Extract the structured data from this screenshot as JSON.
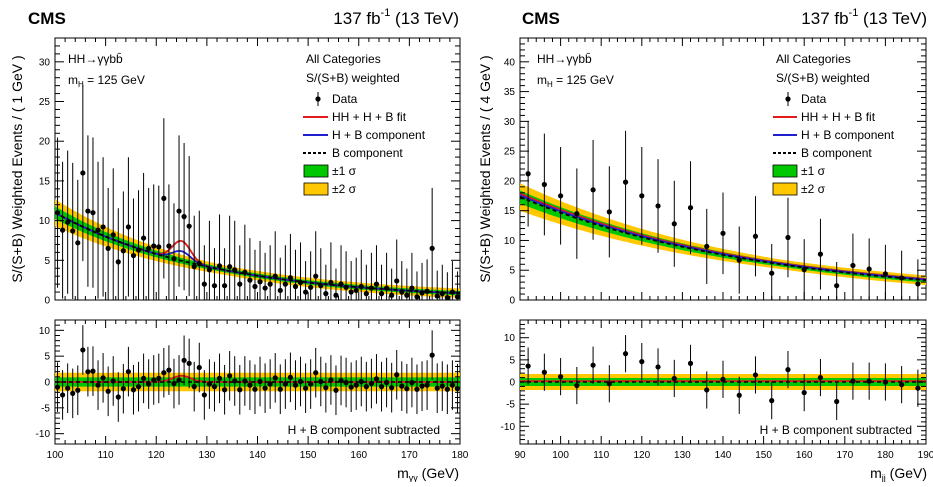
{
  "panels": [
    {
      "experiment": "CMS",
      "lumi_prefix": "137 fb",
      "lumi_exp": "-1",
      "lumi_suffix": " (13 TeV)",
      "process": "HH→γγbb̄",
      "mass_label": "m",
      "mass_sub": "H",
      "mass_value": " = 125 GeV",
      "categories_label": "All Categories",
      "weight_label": "S/(S+B) weighted",
      "ratio_label": "H + B component subtracted",
      "ylabel": "S/(S+B) Weighted Events / ( 1 GeV )",
      "xlabel": "m",
      "xlabel_sub": "γγ",
      "xlabel_unit": " (GeV)"
    },
    {
      "experiment": "CMS",
      "lumi_prefix": "137 fb",
      "lumi_exp": "-1",
      "lumi_suffix": " (13 TeV)",
      "process": "HH→γγbb̄",
      "mass_label": "m",
      "mass_sub": "H",
      "mass_value": " = 125 GeV",
      "categories_label": "All Categories",
      "weight_label": "S/(S+B) weighted",
      "ratio_label": "H + B component subtracted",
      "ylabel": "S/(S+B) Weighted Events / ( 4 GeV )",
      "xlabel": "m",
      "xlabel_sub": "jj",
      "xlabel_unit": " (GeV)"
    }
  ],
  "legend": [
    {
      "key": "data",
      "label": "Data"
    },
    {
      "key": "fit",
      "label": "HH + H + B fit",
      "color": "#e31a1c"
    },
    {
      "key": "hb",
      "label": "H + B component",
      "color": "#1f1fd0"
    },
    {
      "key": "b",
      "label": "B component",
      "color": "#000000"
    },
    {
      "key": "s1",
      "label": "±1 σ",
      "color": "#00c800"
    },
    {
      "key": "s2",
      "label": "±2 σ",
      "color": "#ffc800"
    }
  ],
  "chart_data": [
    {
      "type": "scatter",
      "xlim": [
        100,
        180
      ],
      "ylim": [
        0,
        33
      ],
      "xticks": [
        100,
        110,
        120,
        130,
        140,
        150,
        160,
        170,
        180
      ],
      "yticks": [
        0,
        5,
        10,
        15,
        20,
        25,
        30
      ],
      "points": [
        [
          100.5,
          11
        ],
        [
          101.5,
          8.8
        ],
        [
          102.5,
          9.8
        ],
        [
          103.5,
          8.7
        ],
        [
          104.5,
          7.2
        ],
        [
          105.5,
          16
        ],
        [
          106.5,
          11.2
        ],
        [
          107.5,
          11
        ],
        [
          108.5,
          8.8
        ],
        [
          109.5,
          9.2
        ],
        [
          110.5,
          6.5
        ],
        [
          111.5,
          8.2
        ],
        [
          112.5,
          4.8
        ],
        [
          113.5,
          6.2
        ],
        [
          114.5,
          9.2
        ],
        [
          115.5,
          5.6
        ],
        [
          116.5,
          6.3
        ],
        [
          117.5,
          7.8
        ],
        [
          118.5,
          6.5
        ],
        [
          119.5,
          6.8
        ],
        [
          120.5,
          6.7
        ],
        [
          121.5,
          12.8
        ],
        [
          122.5,
          6.8
        ],
        [
          123.5,
          5.2
        ],
        [
          124.5,
          11.2
        ],
        [
          125.5,
          10.5
        ],
        [
          126.5,
          9.3
        ],
        [
          127.5,
          4.2
        ],
        [
          128.5,
          4.6
        ],
        [
          129.5,
          2
        ],
        [
          130.5,
          3.8
        ],
        [
          131.5,
          1.8
        ],
        [
          132.5,
          4.3
        ],
        [
          133.5,
          1.8
        ],
        [
          134.5,
          4.2
        ],
        [
          135.5,
          3.8
        ],
        [
          136.5,
          2
        ],
        [
          137.5,
          3.5
        ],
        [
          138.5,
          2.5
        ],
        [
          139.5,
          1.7
        ],
        [
          140.5,
          2.3
        ],
        [
          141.5,
          1.5
        ],
        [
          142.5,
          2
        ],
        [
          143.5,
          3
        ],
        [
          144.5,
          1.2
        ],
        [
          145.5,
          2
        ],
        [
          146.5,
          2.8
        ],
        [
          147.5,
          1.7
        ],
        [
          148.5,
          2.2
        ],
        [
          149.5,
          1
        ],
        [
          150.5,
          1.6
        ],
        [
          151.5,
          3
        ],
        [
          152.5,
          1.8
        ],
        [
          153.5,
          0.8
        ],
        [
          154.5,
          2.2
        ],
        [
          155.5,
          0.6
        ],
        [
          156.5,
          2
        ],
        [
          157.5,
          1.6
        ],
        [
          158.5,
          1
        ],
        [
          159.5,
          1.2
        ],
        [
          160.5,
          1.7
        ],
        [
          161.5,
          0.8
        ],
        [
          162.5,
          1.5
        ],
        [
          163.5,
          2
        ],
        [
          164.5,
          0.8
        ],
        [
          165.5,
          1.5
        ],
        [
          166.5,
          0.6
        ],
        [
          167.5,
          2.4
        ],
        [
          168.5,
          1
        ],
        [
          169.5,
          0.6
        ],
        [
          170.5,
          1.5
        ],
        [
          171.5,
          0.4
        ],
        [
          172.5,
          0.9
        ],
        [
          173.5,
          1.1
        ],
        [
          174.5,
          6.5
        ],
        [
          175.5,
          0.5
        ],
        [
          176.5,
          0.8
        ],
        [
          177.5,
          0.3
        ],
        [
          178.5,
          1
        ],
        [
          179.5,
          0.4
        ]
      ],
      "background": {
        "norm": 11.0,
        "slope": 0.032,
        "x0": 100
      },
      "higgs_peak": {
        "mean": 125,
        "sigma": 1.8,
        "hb_amp": 1.2,
        "fit_amp": 2.5
      },
      "band_1sigma": 0.8,
      "band_2sigma": 1.7,
      "ratio_ylim": [
        -12,
        12
      ],
      "ratio_yticks": [
        -10,
        -5,
        0,
        5,
        10
      ],
      "ratio_points": [
        [
          100.5,
          -1
        ],
        [
          101.5,
          -2.5
        ],
        [
          102.5,
          -1.2
        ],
        [
          103.5,
          -2.2
        ],
        [
          104.5,
          -1.6
        ],
        [
          105.5,
          6.2
        ],
        [
          106.5,
          2
        ],
        [
          107.5,
          2.1
        ],
        [
          108.5,
          -0.6
        ],
        [
          109.5,
          0.8
        ],
        [
          110.5,
          -1.8
        ],
        [
          111.5,
          0.2
        ],
        [
          112.5,
          -2.9
        ],
        [
          113.5,
          -1.3
        ],
        [
          114.5,
          2
        ],
        [
          115.5,
          -1.5
        ],
        [
          116.5,
          -0.9
        ],
        [
          117.5,
          0.7
        ],
        [
          118.5,
          -0.4
        ],
        [
          119.5,
          0.4
        ],
        [
          120.5,
          0.7
        ],
        [
          121.5,
          1.8
        ],
        [
          122.5,
          2.3
        ],
        [
          123.5,
          -0.3
        ],
        [
          124.5,
          0.4
        ],
        [
          125.5,
          4.2
        ],
        [
          126.5,
          3.6
        ],
        [
          127.5,
          -0.9
        ],
        [
          128.5,
          2.8
        ],
        [
          129.5,
          -2.5
        ],
        [
          130.5,
          -0.4
        ],
        [
          131.5,
          -0.9
        ],
        [
          132.5,
          0.7
        ],
        [
          133.5,
          -1.5
        ],
        [
          134.5,
          1.2
        ],
        [
          135.5,
          0.2
        ],
        [
          136.5,
          -1.5
        ],
        [
          137.5,
          0.2
        ],
        [
          138.5,
          -0.6
        ],
        [
          139.5,
          -1.4
        ],
        [
          140.5,
          0.1
        ],
        [
          141.5,
          -1.2
        ],
        [
          142.5,
          -0.4
        ],
        [
          143.5,
          0.8
        ],
        [
          144.5,
          -1.4
        ],
        [
          145.5,
          -0.4
        ],
        [
          146.5,
          0.9
        ],
        [
          147.5,
          -0.6
        ],
        [
          148.5,
          0.1
        ],
        [
          149.5,
          -1.2
        ],
        [
          150.5,
          -0.4
        ],
        [
          151.5,
          1.8
        ],
        [
          152.5,
          0.1
        ],
        [
          153.5,
          -1.1
        ],
        [
          154.5,
          0.4
        ],
        [
          155.5,
          -1.6
        ],
        [
          156.5,
          0.3
        ],
        [
          157.5,
          -0.1
        ],
        [
          158.5,
          -1
        ],
        [
          159.5,
          -0.6
        ],
        [
          160.5,
          0.1
        ],
        [
          161.5,
          -0.9
        ],
        [
          162.5,
          -0.3
        ],
        [
          163.5,
          0.6
        ],
        [
          164.5,
          -0.9
        ],
        [
          165.5,
          -0.1
        ],
        [
          166.5,
          -1.1
        ],
        [
          167.5,
          1.4
        ],
        [
          168.5,
          -0.8
        ],
        [
          169.5,
          -1.3
        ],
        [
          170.5,
          -0.1
        ],
        [
          171.5,
          -1.4
        ],
        [
          172.5,
          -0.8
        ],
        [
          173.5,
          -0.6
        ],
        [
          174.5,
          5.2
        ],
        [
          175.5,
          -1.2
        ],
        [
          176.5,
          -0.8
        ],
        [
          177.5,
          -1.4
        ],
        [
          178.5,
          -0.6
        ],
        [
          179.5,
          -1.3
        ]
      ],
      "ratio_band_1sigma": 0.9,
      "ratio_band_2sigma": 1.8,
      "ratio_peak_amp": 1.2
    },
    {
      "type": "scatter",
      "xlim": [
        90,
        190
      ],
      "ylim": [
        0,
        44
      ],
      "xticks": [
        90,
        100,
        110,
        120,
        130,
        140,
        150,
        160,
        170,
        180,
        190
      ],
      "yticks": [
        0,
        5,
        10,
        15,
        20,
        25,
        30,
        35,
        40
      ],
      "points": [
        [
          92,
          21.2
        ],
        [
          96,
          19.4
        ],
        [
          100,
          17.5
        ],
        [
          104,
          14.5
        ],
        [
          108,
          18.5
        ],
        [
          112,
          14.8
        ],
        [
          116,
          19.8
        ],
        [
          120,
          17.5
        ],
        [
          124,
          15.8
        ],
        [
          128,
          12.8
        ],
        [
          132,
          15.5
        ],
        [
          136,
          9
        ],
        [
          140,
          11.2
        ],
        [
          144,
          6.7
        ],
        [
          148,
          10.7
        ],
        [
          152,
          4.5
        ],
        [
          156,
          10.5
        ],
        [
          160,
          5.1
        ],
        [
          164,
          7.7
        ],
        [
          168,
          2.4
        ],
        [
          172,
          5.8
        ],
        [
          176,
          5.2
        ],
        [
          180,
          4.4
        ],
        [
          184,
          3.7
        ],
        [
          188,
          2.7
        ]
      ],
      "background": {
        "norm": 17.3,
        "slope": 0.0165,
        "x0": 90
      },
      "band_1sigma": 1.1,
      "band_2sigma": 2.3,
      "fit_offset": 0.6,
      "hb_offset": 0.3,
      "ratio_ylim": [
        -14,
        14
      ],
      "ratio_yticks": [
        -10,
        -5,
        0,
        5,
        10
      ],
      "ratio_points": [
        [
          92,
          3.6
        ],
        [
          96,
          2.2
        ],
        [
          100,
          1.2
        ],
        [
          104,
          -0.8
        ],
        [
          108,
          3.8
        ],
        [
          112,
          -0.4
        ],
        [
          116,
          6.4
        ],
        [
          120,
          4.6
        ],
        [
          124,
          3.4
        ],
        [
          128,
          0.8
        ],
        [
          132,
          4.2
        ],
        [
          136,
          -1.8
        ],
        [
          140,
          0.6
        ],
        [
          144,
          -3
        ],
        [
          148,
          1.6
        ],
        [
          152,
          -4.2
        ],
        [
          156,
          2.8
        ],
        [
          160,
          -2.4
        ],
        [
          164,
          1
        ],
        [
          168,
          -4.4
        ],
        [
          172,
          0.2
        ],
        [
          176,
          0.2
        ],
        [
          180,
          0
        ],
        [
          184,
          -0.6
        ],
        [
          188,
          -1.4
        ]
      ],
      "ratio_band_1sigma": 0.9,
      "ratio_band_2sigma": 1.8
    }
  ]
}
